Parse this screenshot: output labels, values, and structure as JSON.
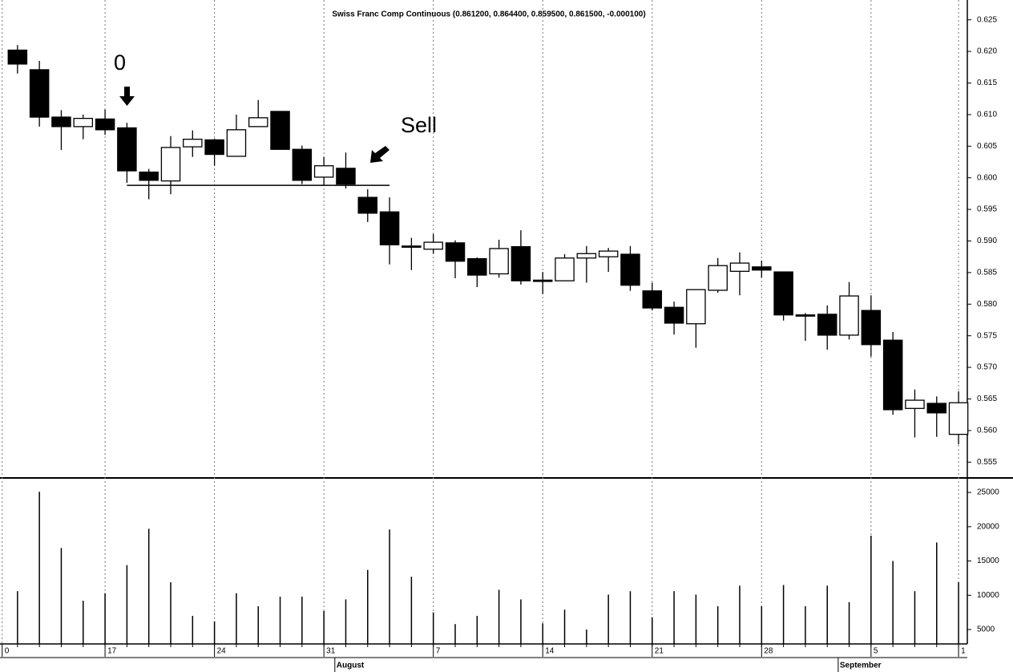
{
  "chart_data": {
    "type": "candlestick",
    "title": "Swiss Franc Comp Continuous (0.861200, 0.864400, 0.859500, 0.861500, -0.000100)",
    "xlim": [
      -0.8,
      43.4
    ],
    "xticks": [
      {
        "value": -0.7,
        "label": "0"
      },
      {
        "value": 4,
        "label": "17"
      },
      {
        "value": 9,
        "label": "24"
      },
      {
        "value": 14,
        "label": "31"
      },
      {
        "value": 19,
        "label": "7"
      },
      {
        "value": 24,
        "label": "14"
      },
      {
        "value": 29,
        "label": "21"
      },
      {
        "value": 34,
        "label": "28"
      },
      {
        "value": 39,
        "label": "5"
      },
      {
        "value": 43,
        "label": "1"
      }
    ],
    "month_ticks": [
      {
        "value": 15,
        "label": "August"
      },
      {
        "value": 38,
        "label": "September"
      }
    ],
    "ylim": [
      0.5525,
      0.6275
    ],
    "yticks": [
      0.555,
      {
        "value": 0.56,
        "label": "0.560"
      },
      0.565,
      {
        "value": 0.57,
        "label": "0.570"
      },
      0.575,
      {
        "value": 0.58,
        "label": "0.580"
      },
      0.585,
      {
        "value": 0.59,
        "label": "0.590"
      },
      0.595,
      {
        "value": 0.6,
        "label": "0.600"
      },
      0.605,
      {
        "value": 0.61,
        "label": "0.610"
      },
      0.615,
      {
        "value": 0.62,
        "label": "0.620"
      },
      0.625
    ],
    "y2lim": [
      2900,
      27000
    ],
    "y2ticks": [
      5000,
      10000,
      15000,
      20000,
      25000
    ],
    "grid": true,
    "up_color": "#ffffff",
    "down_color": "#000000",
    "open": [
      0.6202,
      0.6171,
      0.6096,
      0.6081,
      0.6093,
      0.6079,
      0.6009,
      0.5995,
      0.6049,
      0.606,
      0.6034,
      0.6081,
      0.6105,
      0.6045,
      0.6001,
      0.6015,
      0.5969,
      0.5946,
      0.5892,
      0.5887,
      0.5897,
      0.5872,
      0.5848,
      0.5891,
      0.5838,
      0.5837,
      0.5873,
      0.5875,
      0.5879,
      0.5821,
      0.5795,
      0.5769,
      0.5822,
      0.5852,
      0.5859,
      0.5851,
      0.5783,
      0.5784,
      0.5751,
      0.579,
      0.5743,
      0.5635,
      0.5643,
      0.5594
    ],
    "high": [
      0.621,
      0.6185,
      0.6107,
      0.61,
      0.6108,
      0.6087,
      0.6014,
      0.6066,
      0.6075,
      0.6062,
      0.61,
      0.6123,
      0.6105,
      0.6051,
      0.6033,
      0.604,
      0.5982,
      0.5969,
      0.5905,
      0.5911,
      0.5901,
      0.5874,
      0.5902,
      0.5917,
      0.5851,
      0.5879,
      0.5892,
      0.5889,
      0.5892,
      0.5834,
      0.5804,
      0.5823,
      0.5873,
      0.5882,
      0.5869,
      0.5851,
      0.5786,
      0.5798,
      0.5835,
      0.5814,
      0.5756,
      0.5665,
      0.5654,
      0.5662
    ],
    "low": [
      0.6165,
      0.6081,
      0.6044,
      0.6061,
      0.6068,
      0.5992,
      0.5966,
      0.5974,
      0.6033,
      0.6019,
      0.6034,
      0.6081,
      0.6045,
      0.599,
      0.5989,
      0.5983,
      0.593,
      0.5863,
      0.5854,
      0.588,
      0.5841,
      0.5827,
      0.5842,
      0.5831,
      0.5816,
      0.5837,
      0.5834,
      0.5851,
      0.5821,
      0.579,
      0.5752,
      0.5731,
      0.5818,
      0.5814,
      0.5842,
      0.5774,
      0.5742,
      0.5728,
      0.5744,
      0.5717,
      0.5625,
      0.5589,
      0.559,
      0.5578
    ],
    "close": [
      0.618,
      0.6096,
      0.6081,
      0.6094,
      0.6076,
      0.6011,
      0.5996,
      0.6048,
      0.6061,
      0.6037,
      0.6076,
      0.6095,
      0.6045,
      0.5996,
      0.6019,
      0.599,
      0.5944,
      0.5894,
      0.5891,
      0.5898,
      0.5868,
      0.5846,
      0.5888,
      0.5837,
      0.5836,
      0.5873,
      0.588,
      0.5884,
      0.583,
      0.5794,
      0.577,
      0.5823,
      0.5861,
      0.5865,
      0.5854,
      0.5783,
      0.5782,
      0.5751,
      0.5813,
      0.5736,
      0.5633,
      0.5648,
      0.5628,
      0.5644
    ],
    "volume": [
      10600,
      25100,
      16900,
      9200,
      10300,
      14400,
      19700,
      11900,
      7000,
      6200,
      10300,
      8400,
      9800,
      9800,
      7700,
      9400,
      13700,
      19600,
      12700,
      7500,
      5800,
      7000,
      10800,
      9400,
      5900,
      7900,
      5000,
      10100,
      10600,
      6800,
      10600,
      10100,
      8400,
      11400,
      8400,
      11500,
      8400,
      11400,
      9000,
      18700,
      15000,
      10600,
      17700,
      11900
    ],
    "support_level": 0.5988,
    "annotations": [
      "0",
      "Sell"
    ]
  }
}
